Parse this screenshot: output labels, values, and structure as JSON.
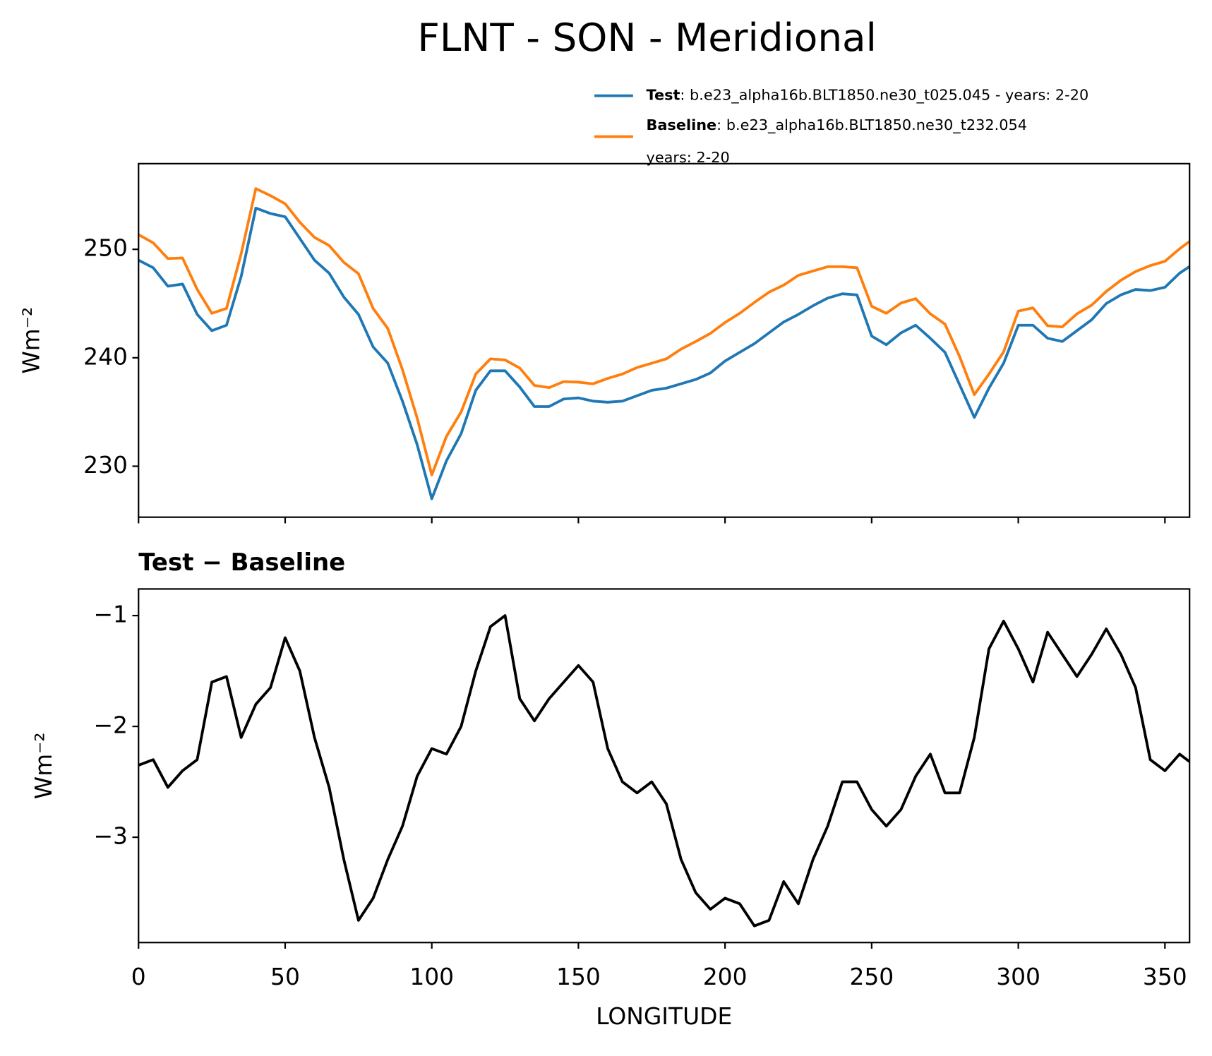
{
  "chart_data": [
    {
      "type": "line",
      "title": "FLNT - SON - Meridional",
      "ylabel": "Wm⁻²",
      "x": [
        0,
        5,
        10,
        15,
        20,
        25,
        30,
        35,
        40,
        45,
        50,
        55,
        60,
        65,
        70,
        75,
        80,
        85,
        90,
        95,
        100,
        105,
        110,
        115,
        120,
        125,
        130,
        135,
        140,
        145,
        150,
        155,
        160,
        165,
        170,
        175,
        180,
        185,
        190,
        195,
        200,
        205,
        210,
        215,
        220,
        225,
        230,
        235,
        240,
        245,
        250,
        255,
        260,
        265,
        270,
        275,
        280,
        285,
        290,
        295,
        300,
        305,
        310,
        315,
        320,
        325,
        330,
        335,
        340,
        345,
        350,
        355,
        360
      ],
      "series": [
        {
          "name": "Test",
          "legend_text": [
            ": b.e23_alpha16b.BLT1850.ne30_t025.045 - years: 2-20"
          ],
          "color": "#1f77b4",
          "values": [
            249,
            248.3,
            246.6,
            246.8,
            244,
            242.5,
            243,
            247.5,
            253.8,
            253.3,
            253,
            251,
            249,
            247.8,
            245.6,
            244,
            241,
            239.5,
            236,
            232,
            227,
            230.5,
            233,
            237,
            238.8,
            238.8,
            237.3,
            235.5,
            235.5,
            236.2,
            236.3,
            236,
            235.9,
            236,
            236.5,
            237,
            237.2,
            237.6,
            238,
            238.6,
            239.7,
            240.5,
            241.3,
            242.3,
            243.3,
            244,
            244.8,
            245.5,
            245.9,
            245.8,
            242,
            241.2,
            242.3,
            243,
            241.8,
            240.5,
            237.5,
            234.5,
            237.2,
            239.5,
            243,
            243,
            241.8,
            241.5,
            242.5,
            243.5,
            245,
            245.8,
            246.3,
            246.2,
            246.5,
            247.8,
            248.7
          ]
        },
        {
          "name": "Baseline",
          "legend_text": [
            ": b.e23_alpha16b.BLT1850.ne30_t232.054",
            "years: 2-20"
          ],
          "color": "#ff7f0e",
          "values": [
            251.35,
            250.6,
            249.15,
            249.2,
            246.3,
            244.1,
            244.55,
            249.6,
            255.6,
            254.95,
            254.2,
            252.5,
            251.1,
            250.35,
            248.8,
            247.75,
            244.55,
            242.7,
            238.9,
            234.45,
            229.2,
            232.75,
            235,
            238.5,
            239.9,
            239.8,
            239.05,
            237.45,
            237.25,
            237.8,
            237.75,
            237.6,
            238.1,
            238.5,
            239.1,
            239.5,
            239.9,
            240.8,
            241.5,
            242.25,
            243.25,
            244.1,
            245.1,
            246.05,
            246.7,
            247.6,
            248,
            248.4,
            248.4,
            248.3,
            244.75,
            244.1,
            245.05,
            245.45,
            244.05,
            243.1,
            240.1,
            236.6,
            238.5,
            240.55,
            244.3,
            244.6,
            242.95,
            242.85,
            244.05,
            244.85,
            246.12,
            247.15,
            247.95,
            248.5,
            248.9,
            250.05,
            251.05
          ]
        }
      ],
      "xlim": [
        0,
        358.4
      ],
      "xticks": [
        0,
        50,
        100,
        150,
        200,
        250,
        300,
        350
      ],
      "ylim": [
        225.3,
        257.9
      ],
      "yticks": [
        230,
        240,
        250
      ]
    },
    {
      "type": "line",
      "title": "Test − Baseline",
      "ylabel": "Wm⁻²",
      "xlabel": "LONGITUDE",
      "x": [
        0,
        5,
        10,
        15,
        20,
        25,
        30,
        35,
        40,
        45,
        50,
        55,
        60,
        65,
        70,
        75,
        80,
        85,
        90,
        95,
        100,
        105,
        110,
        115,
        120,
        125,
        130,
        135,
        140,
        145,
        150,
        155,
        160,
        165,
        170,
        175,
        180,
        185,
        190,
        195,
        200,
        205,
        210,
        215,
        220,
        225,
        230,
        235,
        240,
        245,
        250,
        255,
        260,
        265,
        270,
        275,
        280,
        285,
        290,
        295,
        300,
        305,
        310,
        315,
        320,
        325,
        330,
        335,
        340,
        345,
        350,
        355,
        360
      ],
      "series": [
        {
          "color": "#000000",
          "values": [
            -2.35,
            -2.3,
            -2.55,
            -2.4,
            -2.3,
            -1.6,
            -1.55,
            -2.1,
            -1.8,
            -1.65,
            -1.2,
            -1.5,
            -2.1,
            -2.55,
            -3.2,
            -3.75,
            -3.55,
            -3.2,
            -2.9,
            -2.45,
            -2.2,
            -2.25,
            -2.0,
            -1.5,
            -1.1,
            -1.0,
            -1.75,
            -1.95,
            -1.75,
            -1.6,
            -1.45,
            -1.6,
            -2.2,
            -2.5,
            -2.6,
            -2.5,
            -2.7,
            -3.2,
            -3.5,
            -3.65,
            -3.55,
            -3.6,
            -3.8,
            -3.75,
            -3.4,
            -3.6,
            -3.2,
            -2.9,
            -2.5,
            -2.5,
            -2.75,
            -2.9,
            -2.75,
            -2.45,
            -2.25,
            -2.6,
            -2.6,
            -2.1,
            -1.3,
            -1.05,
            -1.3,
            -1.6,
            -1.15,
            -1.35,
            -1.55,
            -1.35,
            -1.12,
            -1.35,
            -1.65,
            -2.3,
            -2.4,
            -2.25,
            -2.35
          ]
        }
      ],
      "xlim": [
        0,
        358.4
      ],
      "xticks": [
        0,
        50,
        100,
        150,
        200,
        250,
        300,
        350
      ],
      "ylim": [
        -3.95,
        -0.76
      ],
      "yticks": [
        {
          "value": -3,
          "label": "−3"
        },
        {
          "value": -2,
          "label": "−2"
        },
        {
          "value": -1,
          "label": "−1"
        }
      ]
    }
  ]
}
